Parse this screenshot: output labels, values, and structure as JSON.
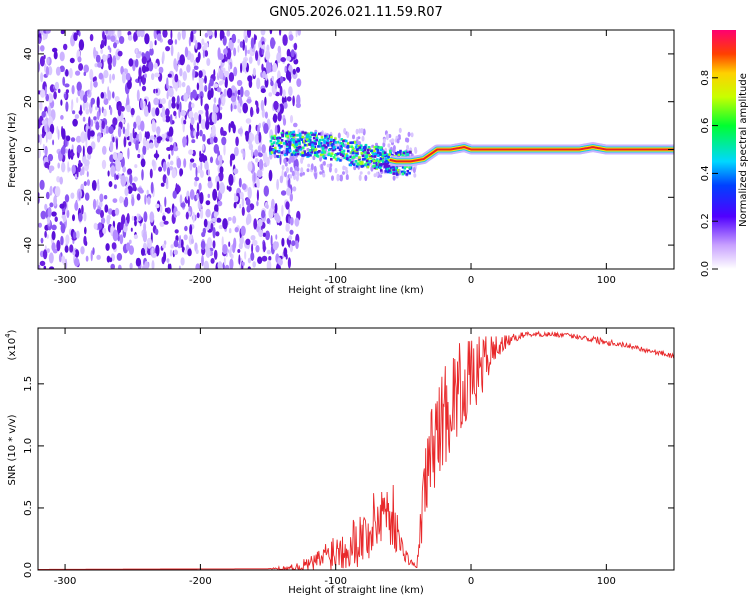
{
  "title": "GN05.2026.021.11.59.R07",
  "colors": {
    "snr_line": "#e8282a",
    "ridge_outer": "#1ec8e6",
    "ridge_mid": "#ffe600",
    "ridge_core": "#e82020",
    "scatter": "#6a1fe0"
  },
  "chart_data": [
    {
      "type": "heatmap",
      "title": "GN05.2026.021.11.59.R07",
      "xlabel": "Height of straight line (km)",
      "ylabel": "Frequency (Hz)",
      "xlim": [
        -320,
        150
      ],
      "ylim": [
        -50,
        50
      ],
      "xticks": [
        -300,
        -200,
        -100,
        0,
        100
      ],
      "yticks": [
        -40,
        -20,
        0,
        20,
        40
      ],
      "colorbar": {
        "label": "Normalized spectral amplitude",
        "range": [
          0.0,
          1.0
        ],
        "ticks": [
          0.0,
          0.2,
          0.4,
          0.6,
          0.8
        ]
      },
      "noise_region_x": [
        -320,
        -135
      ],
      "ridge": {
        "x": [
          -150,
          -130,
          -110,
          -90,
          -70,
          -55,
          -45,
          -35,
          -25,
          -15,
          -5,
          0,
          40,
          80,
          90,
          100,
          150
        ],
        "freq": [
          2,
          3,
          2,
          -1,
          -3,
          -5,
          -5,
          -4,
          0,
          0,
          1,
          0,
          0,
          0,
          1,
          0,
          0
        ],
        "amplitude": [
          0.3,
          0.35,
          0.4,
          0.4,
          0.45,
          0.75,
          0.85,
          0.95,
          0.95,
          0.95,
          0.95,
          1.0,
          1.0,
          1.0,
          1.0,
          1.0,
          1.0
        ]
      }
    },
    {
      "type": "line",
      "xlabel": "Height of straight line (km)",
      "ylabel": "SNR (10 * v/v)",
      "scale_label": "(x10",
      "scale_exp": "4",
      "scale_close": ")",
      "xlim": [
        -320,
        150
      ],
      "ylim": [
        0,
        1.95
      ],
      "xticks": [
        -300,
        -200,
        -100,
        0,
        100
      ],
      "yticks": [
        0.0,
        0.5,
        1.0,
        1.5
      ],
      "ytick_labels": [
        "0.0",
        "0.5",
        "1.0",
        "1.5"
      ],
      "series": [
        {
          "name": "SNR",
          "x": [
            -320,
            -150,
            -130,
            -115,
            -105,
            -95,
            -85,
            -75,
            -65,
            -58,
            -52,
            -46,
            -40,
            -35,
            -30,
            -25,
            -20,
            -15,
            -10,
            -5,
            0,
            5,
            10,
            15,
            20,
            25,
            30,
            35,
            40,
            50,
            60,
            70,
            80,
            90,
            100,
            110,
            120,
            130,
            140,
            150
          ],
          "y": [
            0.005,
            0.01,
            0.02,
            0.06,
            0.14,
            0.18,
            0.24,
            0.3,
            0.5,
            0.45,
            0.2,
            0.08,
            0.02,
            0.6,
            0.95,
            1.1,
            1.25,
            1.35,
            1.45,
            1.5,
            1.55,
            1.6,
            1.68,
            1.75,
            1.8,
            1.83,
            1.86,
            1.88,
            1.9,
            1.9,
            1.9,
            1.89,
            1.88,
            1.86,
            1.84,
            1.82,
            1.8,
            1.77,
            1.75,
            1.72
          ],
          "jitter": [
            0,
            0,
            0.03,
            0.08,
            0.14,
            0.18,
            0.22,
            0.25,
            0.3,
            0.28,
            0.1,
            0.04,
            0.02,
            0.3,
            0.35,
            0.4,
            0.42,
            0.4,
            0.38,
            0.35,
            0.3,
            0.28,
            0.22,
            0.16,
            0.1,
            0.06,
            0.04,
            0.03,
            0.02,
            0.02,
            0.02,
            0.02,
            0.02,
            0.03,
            0.03,
            0.02,
            0.02,
            0.02,
            0.02,
            0.02
          ]
        }
      ]
    }
  ]
}
